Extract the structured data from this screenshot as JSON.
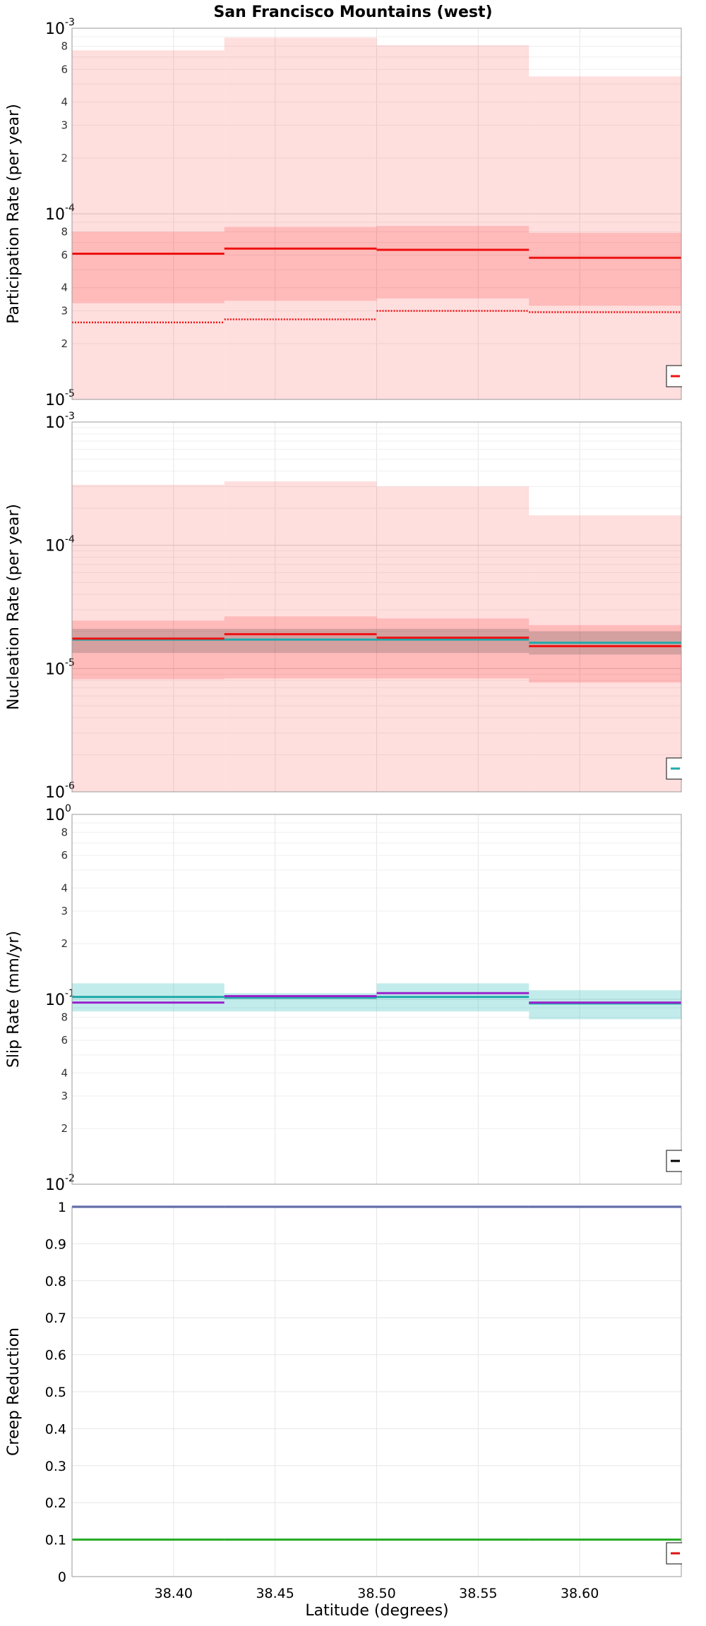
{
  "figure": {
    "title": "San Francisco Mountains (west)",
    "xlabel": "Latitude (degrees)"
  },
  "chart_data": [
    {
      "type": "line",
      "title": "San Francisco Mountains (west)",
      "ylabel": "Participation Rate (per year)",
      "yscale": "log",
      "ylim": [
        1e-05,
        0.001
      ],
      "xlim": [
        38.35,
        38.65
      ],
      "grid": true,
      "legend_placement": "bottom-right",
      "x_edges": [
        38.35,
        38.425,
        38.5,
        38.575,
        38.65
      ],
      "bands": [
        {
          "color": "#ff0000",
          "opacity": 0.13,
          "lower": [
            1e-05,
            1e-05,
            1e-05,
            1e-05
          ],
          "upper": [
            0.00076,
            0.00089,
            0.00081,
            0.00055
          ]
        },
        {
          "color": "#ff0000",
          "opacity": 0.16,
          "lower": [
            3.3e-05,
            3.4e-05,
            3.5e-05,
            3.2e-05
          ],
          "upper": [
            8e-05,
            8.5e-05,
            8.6e-05,
            7.9e-05
          ]
        }
      ],
      "series": [
        {
          "color": "#ee1111",
          "style": "solid",
          "values": [
            6.1e-05,
            6.5e-05,
            6.4e-05,
            5.8e-05
          ]
        },
        {
          "color": "#ee1111",
          "style": "dotted",
          "values": [
            2.6e-05,
            2.7e-05,
            3e-05,
            2.95e-05
          ]
        }
      ],
      "legend_swatch": "#ee1111"
    },
    {
      "type": "line",
      "ylabel": "Nucleation Rate (per year)",
      "yscale": "log",
      "ylim": [
        1e-06,
        0.001
      ],
      "xlim": [
        38.35,
        38.65
      ],
      "grid": true,
      "legend_placement": "bottom-right",
      "x_edges": [
        38.35,
        38.425,
        38.5,
        38.575,
        38.65
      ],
      "bands": [
        {
          "color": "#ff0000",
          "opacity": 0.13,
          "lower": [
            1e-06,
            1e-06,
            1e-06,
            1e-06
          ],
          "upper": [
            0.00031,
            0.00033,
            0.0003,
            0.000175
          ]
        },
        {
          "color": "#ff0000",
          "opacity": 0.16,
          "lower": [
            8.2e-06,
            8.3e-06,
            8.3e-06,
            7.7e-06
          ],
          "upper": [
            2.45e-05,
            2.65e-05,
            2.55e-05,
            2.25e-05
          ]
        },
        {
          "color": "#555555",
          "opacity": 0.25,
          "lower": [
            1.34e-05,
            1.34e-05,
            1.34e-05,
            1.3e-05
          ],
          "upper": [
            2.1e-05,
            2.1e-05,
            2.1e-05,
            2e-05
          ]
        }
      ],
      "series": [
        {
          "color": "#20aaaa",
          "style": "solid",
          "values": [
            1.72e-05,
            1.72e-05,
            1.72e-05,
            1.62e-05
          ]
        },
        {
          "color": "#ee1111",
          "style": "solid",
          "values": [
            1.75e-05,
            1.9e-05,
            1.78e-05,
            1.52e-05
          ]
        }
      ],
      "legend_swatch": "#20aaaa"
    },
    {
      "type": "line",
      "ylabel": "Slip Rate (mm/yr)",
      "yscale": "log",
      "ylim": [
        0.01,
        1
      ],
      "xlim": [
        38.35,
        38.65
      ],
      "grid": true,
      "legend_placement": "bottom-right",
      "x_edges": [
        38.35,
        38.425,
        38.5,
        38.575,
        38.65
      ],
      "bands": [
        {
          "color": "#40c4c0",
          "opacity": 0.32,
          "lower": [
            0.086,
            0.086,
            0.086,
            0.078
          ],
          "upper": [
            0.122,
            0.108,
            0.122,
            0.112
          ]
        }
      ],
      "series": [
        {
          "color": "#20aaaa",
          "style": "solid",
          "values": [
            0.103,
            0.102,
            0.103,
            0.095
          ]
        },
        {
          "color": "#9922cc",
          "style": "solid",
          "values": [
            0.096,
            0.104,
            0.108,
            0.096
          ]
        }
      ],
      "legend_swatch": "#000000"
    },
    {
      "type": "line",
      "ylabel": "Creep Reduction",
      "yscale": "linear",
      "ylim": [
        0,
        1
      ],
      "xlim": [
        38.35,
        38.65
      ],
      "grid": true,
      "legend_placement": "bottom-right",
      "x_ticks": [
        "38.40",
        "38.45",
        "38.50",
        "38.55",
        "38.60"
      ],
      "x_tick_values": [
        38.4,
        38.45,
        38.5,
        38.55,
        38.6
      ],
      "y_ticks": [
        "0",
        "0.1",
        "0.2",
        "0.3",
        "0.4",
        "0.5",
        "0.6",
        "0.7",
        "0.8",
        "0.9",
        "1"
      ],
      "x_edges": [
        38.35,
        38.425,
        38.5,
        38.575,
        38.65
      ],
      "bands": [],
      "series": [
        {
          "color": "#3344aa",
          "style": "solid",
          "values": [
            1,
            1,
            1,
            1
          ]
        },
        {
          "color": "#22aa22",
          "style": "solid",
          "values": [
            0.1,
            0.1,
            0.1,
            0.1
          ]
        }
      ],
      "legend_swatch": "#dd1111"
    }
  ]
}
